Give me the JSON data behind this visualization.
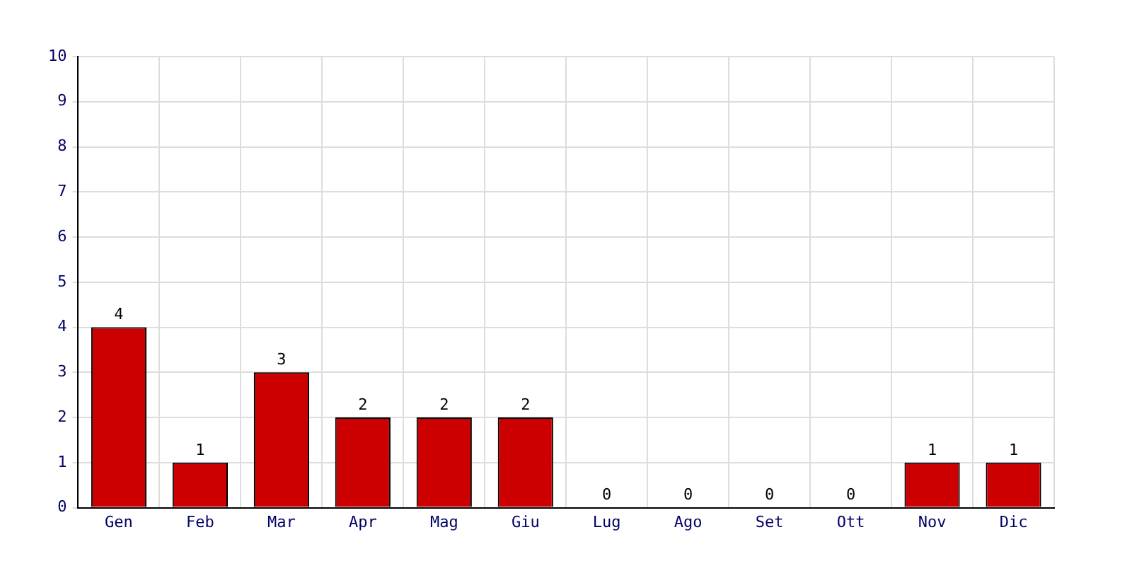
{
  "chart_data": {
    "type": "bar",
    "categories": [
      "Gen",
      "Feb",
      "Mar",
      "Apr",
      "Mag",
      "Giu",
      "Lug",
      "Ago",
      "Set",
      "Ott",
      "Nov",
      "Dic"
    ],
    "values": [
      4,
      1,
      3,
      2,
      2,
      2,
      0,
      0,
      0,
      0,
      1,
      1
    ],
    "color": "#cc0000",
    "ylim": [
      0,
      10
    ],
    "yticks": [
      0,
      1,
      2,
      3,
      4,
      5,
      6,
      7,
      8,
      9,
      10
    ],
    "grid": true,
    "data_labels": true
  }
}
